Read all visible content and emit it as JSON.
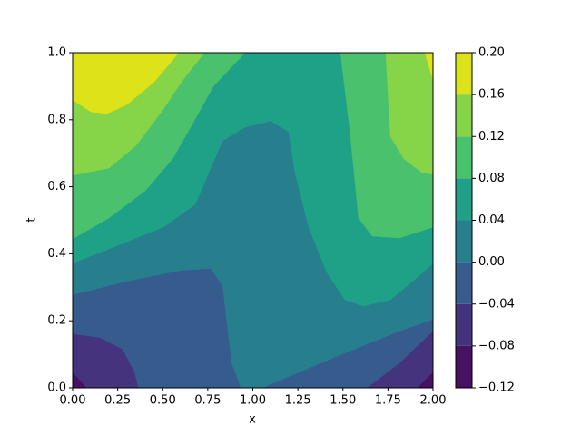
{
  "chart_data": {
    "type": "contourf",
    "xlabel": "x",
    "ylabel": "t",
    "xlim": [
      0,
      2
    ],
    "ylim": [
      0,
      1
    ],
    "xticks": [
      {
        "value": 0,
        "label": "0.00"
      },
      {
        "value": 0.25,
        "label": "0.25"
      },
      {
        "value": 0.5,
        "label": "0.50"
      },
      {
        "value": 0.75,
        "label": "0.75"
      },
      {
        "value": 1,
        "label": "1.00"
      },
      {
        "value": 1.25,
        "label": "1.25"
      },
      {
        "value": 1.5,
        "label": "1.50"
      },
      {
        "value": 1.75,
        "label": "1.75"
      },
      {
        "value": 2,
        "label": "2.00"
      }
    ],
    "yticks": [
      {
        "value": 0,
        "label": "0.0"
      },
      {
        "value": 0.2,
        "label": "0.2"
      },
      {
        "value": 0.4,
        "label": "0.4"
      },
      {
        "value": 0.6,
        "label": "0.6"
      },
      {
        "value": 0.8,
        "label": "0.8"
      },
      {
        "value": 1,
        "label": "1.0"
      }
    ],
    "levels": [
      {
        "value": -0.12,
        "label": "−0.12"
      },
      {
        "value": -0.08,
        "label": "−0.08"
      },
      {
        "value": -0.04,
        "label": "−0.04"
      },
      {
        "value": 0,
        "label": "0.00"
      },
      {
        "value": 0.04,
        "label": "0.04"
      },
      {
        "value": 0.08,
        "label": "0.08"
      },
      {
        "value": 0.12,
        "label": "0.12"
      },
      {
        "value": 0.16,
        "label": "0.16"
      },
      {
        "value": 0.2,
        "label": "0.20"
      }
    ],
    "colors": [
      "#471164",
      "#46337e",
      "#365c8d",
      "#277f8e",
      "#1fa187",
      "#4ac16d",
      "#86d549",
      "#dde318"
    ]
  }
}
